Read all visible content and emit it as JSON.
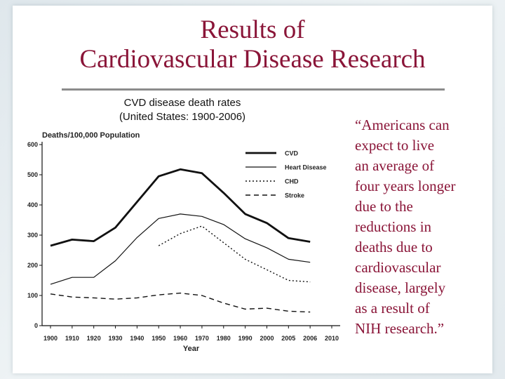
{
  "title_lines": [
    "Results of",
    "Cardiovascular Disease Research"
  ],
  "caption_lines": [
    "CVD disease death rates",
    "(United States: 1900-2006)"
  ],
  "quote_lines": [
    "“Americans can",
    "expect to live",
    "an average of",
    "four years longer",
    "due to the",
    "reductions in",
    "deaths due to",
    "cardiovascular",
    "disease, largely",
    "as a result of",
    "NIH research.”"
  ],
  "colors": {
    "title": "#8a1538",
    "line": "#111111"
  },
  "chart_data": {
    "type": "line",
    "title": "",
    "ylabel": "Deaths/100,000 Population",
    "xlabel": "Year",
    "ylim": [
      0,
      600
    ],
    "yticks": [
      0,
      100,
      200,
      300,
      400,
      500,
      600
    ],
    "xticks": [
      1900,
      1910,
      1920,
      1930,
      1940,
      1950,
      1960,
      1970,
      1980,
      1990,
      2000,
      2005,
      2006,
      2010
    ],
    "legend_position": "top-right",
    "series": [
      {
        "name": "CVD",
        "style": "solid-thick",
        "x": [
          1900,
          1910,
          1920,
          1930,
          1940,
          1950,
          1960,
          1970,
          1980,
          1990,
          2000,
          2005,
          2006
        ],
        "y": [
          265,
          285,
          280,
          325,
          410,
          495,
          518,
          505,
          440,
          370,
          340,
          290,
          278
        ]
      },
      {
        "name": "Heart Disease",
        "style": "solid-thin",
        "x": [
          1900,
          1910,
          1920,
          1930,
          1940,
          1950,
          1960,
          1970,
          1980,
          1990,
          2000,
          2005,
          2006
        ],
        "y": [
          137,
          160,
          160,
          215,
          292,
          355,
          370,
          362,
          335,
          288,
          258,
          220,
          210
        ]
      },
      {
        "name": "CHD",
        "style": "dotted",
        "x": [
          1950,
          1960,
          1970,
          1980,
          1990,
          2000,
          2005,
          2006
        ],
        "y": [
          265,
          305,
          330,
          275,
          220,
          185,
          150,
          145
        ]
      },
      {
        "name": "Stroke",
        "style": "dashed",
        "x": [
          1900,
          1910,
          1920,
          1930,
          1940,
          1950,
          1960,
          1970,
          1980,
          1990,
          2000,
          2005,
          2006
        ],
        "y": [
          105,
          95,
          92,
          88,
          92,
          102,
          108,
          100,
          75,
          55,
          58,
          48,
          45
        ]
      }
    ]
  }
}
